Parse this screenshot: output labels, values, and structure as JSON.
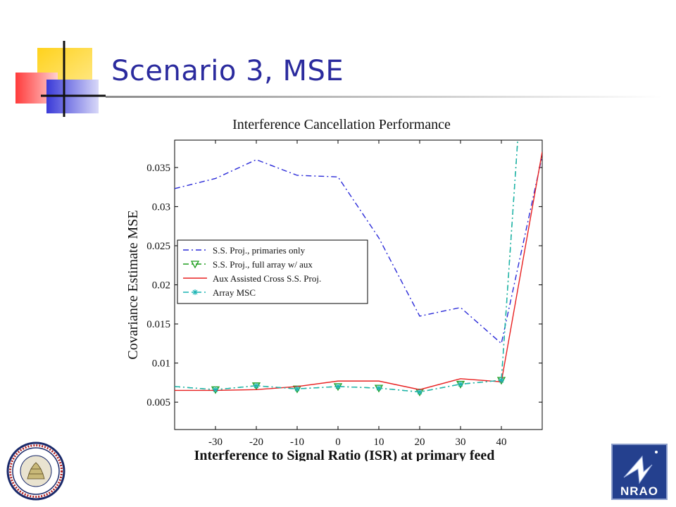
{
  "slide": {
    "title": "Scenario 3, MSE"
  },
  "chart_data": {
    "type": "line",
    "title": "Interference Cancellation Performance",
    "xlabel": "Interference to Signal Ratio (ISR) at primary feed",
    "ylabel": "Covariance Estimate MSE",
    "xlim": [
      -40,
      50
    ],
    "ylim": [
      0.0015,
      0.0385
    ],
    "x_ticks": [
      -30,
      -20,
      -10,
      0,
      10,
      20,
      30,
      40
    ],
    "x_tick_labels": [
      "-30",
      "-20",
      "-10",
      "0",
      "10",
      "20",
      "30",
      "40"
    ],
    "y_ticks": [
      0.005,
      0.01,
      0.015,
      0.02,
      0.025,
      0.03,
      0.035
    ],
    "y_tick_labels": [
      "0.005",
      "0.01",
      "0.015",
      "0.02",
      "0.025",
      "0.03",
      "0.035"
    ],
    "grid": false,
    "legend_position": "center-left",
    "series": [
      {
        "name": "S.S. Proj., primaries only",
        "color": "#2a2ad8",
        "style": "dashdot",
        "marker": "none",
        "x": [
          -40,
          -30,
          -20,
          -10,
          0,
          10,
          20,
          30,
          40,
          50
        ],
        "y": [
          0.0323,
          0.0336,
          0.036,
          0.034,
          0.0338,
          0.026,
          0.016,
          0.0171,
          0.0125,
          0.0365
        ]
      },
      {
        "name": "S.S. Proj., full array w/ aux",
        "color": "#1e9e1e",
        "style": "dashdot",
        "marker": "triangle-down",
        "x": [
          -40,
          -30,
          -20,
          -10,
          0,
          10,
          20,
          30,
          40,
          44
        ],
        "y": [
          0.007,
          0.0066,
          0.0071,
          0.0067,
          0.007,
          0.0068,
          0.0063,
          0.0073,
          0.0078,
          0.0385
        ]
      },
      {
        "name": "Aux Assisted Cross S.S. Proj.",
        "color": "#e82020",
        "style": "solid",
        "marker": "none",
        "x": [
          -40,
          -30,
          -20,
          -10,
          0,
          10,
          20,
          30,
          40,
          50
        ],
        "y": [
          0.0065,
          0.0065,
          0.0066,
          0.007,
          0.0077,
          0.0077,
          0.0066,
          0.008,
          0.0076,
          0.037
        ]
      },
      {
        "name": "Array MSC",
        "color": "#19b3b3",
        "style": "dashdot",
        "marker": "star",
        "x": [
          -40,
          -30,
          -20,
          -10,
          0,
          10,
          20,
          30,
          40,
          44
        ],
        "y": [
          0.007,
          0.0066,
          0.0071,
          0.0067,
          0.007,
          0.0068,
          0.0063,
          0.0073,
          0.0078,
          0.0385
        ]
      }
    ]
  },
  "logos": {
    "byu_seal_text": "BRIGHAM YOUNG UNIVERSITY",
    "nrao_text": "NRAO"
  }
}
